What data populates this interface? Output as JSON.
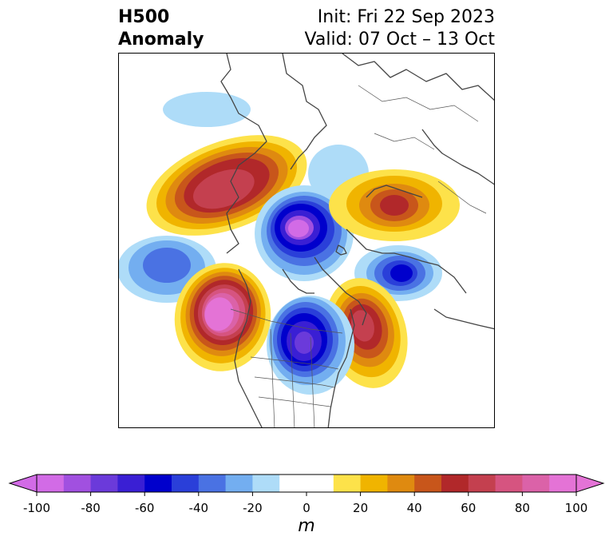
{
  "title": {
    "left_line1": "H500",
    "left_line2": "Anomaly",
    "right_line1": "Init: Fri 22 Sep 2023",
    "right_line2": "Valid: 07 Oct – 13 Oct"
  },
  "colorbar": {
    "unit": "m",
    "ticks": [
      "-100",
      "-80",
      "-60",
      "-40",
      "-20",
      "0",
      "20",
      "40",
      "60",
      "80",
      "100"
    ],
    "range": [
      -100,
      100
    ],
    "extend": "both",
    "bin_colors": [
      "#d26be6",
      "#a150e0",
      "#6b3ada",
      "#3a1fd4",
      "#0000cc",
      "#2a3fd9",
      "#4a72e3",
      "#73aef0",
      "#aedcf8",
      "#ffffff",
      "#ffffff",
      "#fde24a",
      "#f0b400",
      "#df8a10",
      "#c8561b",
      "#b1282a",
      "#c4404f",
      "#d65480",
      "#db62a8",
      "#e473d6"
    ],
    "under_color": "#d26be6",
    "over_color": "#e473d6"
  },
  "map": {
    "projection": "north-polar-stereographic",
    "features": [
      "coastlines",
      "country-borders",
      "us-state-borders"
    ]
  }
}
